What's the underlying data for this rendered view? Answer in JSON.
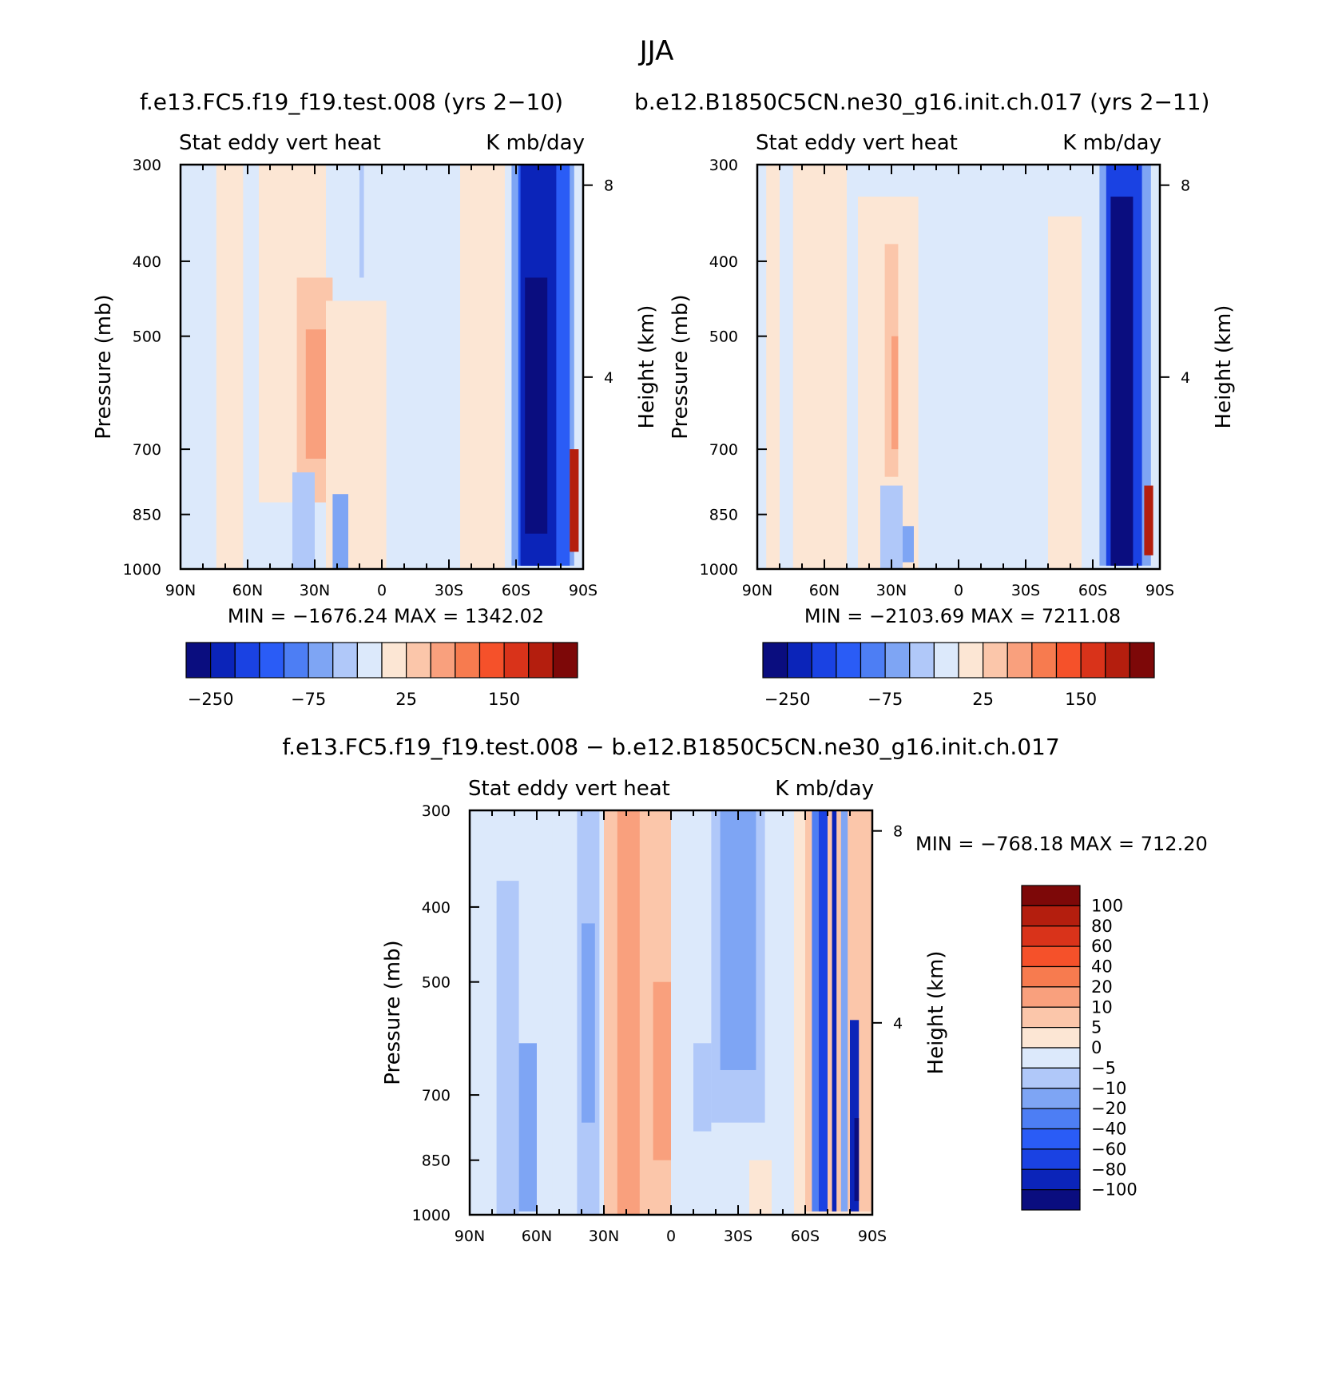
{
  "page": {
    "title": "JJA",
    "panel_top_left_title": "f.e13.FC5.f19_f19.test.008 (yrs 2−10)",
    "panel_top_right_title": "b.e12.B1850C5CN.ne30_g16.init.ch.017 (yrs 2−11)",
    "panel_bottom_title": "f.e13.FC5.f19_f19.test.008 − b.e12.B1850C5CN.ne30_g16.init.ch.017"
  },
  "chart_data": [
    {
      "type": "heatmap",
      "id": "top-left",
      "left_label": "Stat eddy vert heat",
      "right_label": "K mb/day",
      "xlabel": "",
      "ylabel": "Pressure (mb)",
      "ylabel_right": "Height (km)",
      "x_ticks": [
        "90N",
        "60N",
        "30N",
        "0",
        "30S",
        "60S",
        "90S"
      ],
      "y_ticks": [
        300,
        400,
        500,
        700,
        850,
        1000
      ],
      "y_ticks_right": [
        8,
        4
      ],
      "stats": "MIN = −1676.24   MAX = 1342.02",
      "colorbar_orientation": "horizontal",
      "colorbar_tick_labels": [
        "−250",
        "−75",
        "25",
        "150"
      ],
      "colorbar_colors": [
        "#0a0d7f",
        "#0b24b9",
        "#1a42e3",
        "#2a5cf6",
        "#4d7ef4",
        "#7ea5f4",
        "#b0c8f9",
        "#dce9fb",
        "#fce6d4",
        "#fbc6aa",
        "#f9a07d",
        "#f77b4f",
        "#f5512a",
        "#d9331a",
        "#b41e0e",
        "#7d0808"
      ],
      "regions": [
        {
          "lat1": 74,
          "lat2": 62,
          "p1": 300,
          "p2": 1000,
          "level": 8
        },
        {
          "lat1": 55,
          "lat2": 25,
          "p1": 300,
          "p2": 820,
          "level": 8
        },
        {
          "lat1": 38,
          "lat2": 22,
          "p1": 420,
          "p2": 820,
          "level": 9
        },
        {
          "lat1": 34,
          "lat2": 25,
          "p1": 490,
          "p2": 720,
          "level": 10
        },
        {
          "lat1": 25,
          "lat2": -2,
          "p1": 450,
          "p2": 1000,
          "level": 8
        },
        {
          "lat1": -35,
          "lat2": -55,
          "p1": 300,
          "p2": 1000,
          "level": 8
        },
        {
          "lat1": 40,
          "lat2": 30,
          "p1": 750,
          "p2": 1000,
          "level": 6
        },
        {
          "lat1": 22,
          "lat2": 15,
          "p1": 800,
          "p2": 1000,
          "level": 5
        },
        {
          "lat1": 10,
          "lat2": 8,
          "p1": 300,
          "p2": 420,
          "level": 6
        },
        {
          "lat1": -58,
          "lat2": -86,
          "p1": 300,
          "p2": 990,
          "level": 5
        },
        {
          "lat1": -61,
          "lat2": -84,
          "p1": 300,
          "p2": 990,
          "level": 3
        },
        {
          "lat1": -62,
          "lat2": -78,
          "p1": 300,
          "p2": 990,
          "level": 1
        },
        {
          "lat1": -64,
          "lat2": -74,
          "p1": 420,
          "p2": 900,
          "level": 0
        },
        {
          "lat1": -84,
          "lat2": -88,
          "p1": 700,
          "p2": 950,
          "level": 14
        }
      ]
    },
    {
      "type": "heatmap",
      "id": "top-right",
      "left_label": "Stat eddy vert heat",
      "right_label": "K mb/day",
      "xlabel": "",
      "ylabel": "Pressure (mb)",
      "ylabel_right": "Height (km)",
      "x_ticks": [
        "90N",
        "60N",
        "30N",
        "0",
        "30S",
        "60S",
        "90S"
      ],
      "y_ticks": [
        300,
        400,
        500,
        700,
        850,
        1000
      ],
      "y_ticks_right": [
        8,
        4
      ],
      "stats": "MIN = −2103.69   MAX = 7211.08",
      "colorbar_orientation": "horizontal",
      "colorbar_tick_labels": [
        "−250",
        "−75",
        "25",
        "150"
      ],
      "colorbar_colors": [
        "#0a0d7f",
        "#0b24b9",
        "#1a42e3",
        "#2a5cf6",
        "#4d7ef4",
        "#7ea5f4",
        "#b0c8f9",
        "#dce9fb",
        "#fce6d4",
        "#fbc6aa",
        "#f9a07d",
        "#f77b4f",
        "#f5512a",
        "#d9331a",
        "#b41e0e",
        "#7d0808"
      ],
      "regions": [
        {
          "lat1": 86,
          "lat2": 80,
          "p1": 300,
          "p2": 1000,
          "level": 8
        },
        {
          "lat1": 74,
          "lat2": 50,
          "p1": 300,
          "p2": 1000,
          "level": 8
        },
        {
          "lat1": 45,
          "lat2": 18,
          "p1": 330,
          "p2": 1000,
          "level": 8
        },
        {
          "lat1": 33,
          "lat2": 27,
          "p1": 380,
          "p2": 760,
          "level": 9
        },
        {
          "lat1": 30,
          "lat2": 27,
          "p1": 500,
          "p2": 700,
          "level": 10
        },
        {
          "lat1": -40,
          "lat2": -55,
          "p1": 350,
          "p2": 1000,
          "level": 8
        },
        {
          "lat1": 35,
          "lat2": 25,
          "p1": 780,
          "p2": 1000,
          "level": 6
        },
        {
          "lat1": 25,
          "lat2": 20,
          "p1": 880,
          "p2": 980,
          "level": 5
        },
        {
          "lat1": -63,
          "lat2": -86,
          "p1": 300,
          "p2": 990,
          "level": 5
        },
        {
          "lat1": -66,
          "lat2": -82,
          "p1": 300,
          "p2": 990,
          "level": 2
        },
        {
          "lat1": -68,
          "lat2": -78,
          "p1": 330,
          "p2": 990,
          "level": 0
        },
        {
          "lat1": -83,
          "lat2": -87,
          "p1": 780,
          "p2": 960,
          "level": 14
        }
      ]
    },
    {
      "type": "heatmap",
      "id": "bottom-diff",
      "left_label": "Stat eddy vert heat",
      "right_label": "K mb/day",
      "xlabel": "",
      "ylabel": "Pressure (mb)",
      "ylabel_right": "Height (km)",
      "x_ticks": [
        "90N",
        "60N",
        "30N",
        "0",
        "30S",
        "60S",
        "90S"
      ],
      "y_ticks": [
        300,
        400,
        500,
        700,
        850,
        1000
      ],
      "y_ticks_right": [
        8,
        4
      ],
      "stats": "MIN = −768.18   MAX = 712.20",
      "colorbar_orientation": "vertical",
      "colorbar_tick_labels": [
        "100",
        "80",
        "60",
        "40",
        "20",
        "10",
        "5",
        "0",
        "−5",
        "−10",
        "−20",
        "−40",
        "−60",
        "−80",
        "−100"
      ],
      "colorbar_colors": [
        "#7d0808",
        "#b41e0e",
        "#d9331a",
        "#f5512a",
        "#f77b4f",
        "#f9a07d",
        "#fbc6aa",
        "#fce6d4",
        "#dce9fb",
        "#b0c8f9",
        "#7ea5f4",
        "#4d7ef4",
        "#2a5cf6",
        "#1a42e3",
        "#0b24b9",
        "#0a0d7f"
      ],
      "regions": [
        {
          "lat1": 90,
          "lat2": 53,
          "p1": 300,
          "p2": 1000,
          "level": 8
        },
        {
          "lat1": 78,
          "lat2": 68,
          "p1": 370,
          "p2": 1000,
          "level": 9
        },
        {
          "lat1": 68,
          "lat2": 60,
          "p1": 600,
          "p2": 990,
          "level": 10
        },
        {
          "lat1": 42,
          "lat2": 32,
          "p1": 300,
          "p2": 1000,
          "level": 9
        },
        {
          "lat1": 40,
          "lat2": 34,
          "p1": 420,
          "p2": 760,
          "level": 10
        },
        {
          "lat1": 22,
          "lat2": 12,
          "p1": 700,
          "p2": 990,
          "level": 10
        },
        {
          "lat1": 30,
          "lat2": 0,
          "p1": 300,
          "p2": 1000,
          "level": 6
        },
        {
          "lat1": 24,
          "lat2": 14,
          "p1": 300,
          "p2": 1000,
          "level": 5
        },
        {
          "lat1": 8,
          "lat2": 0,
          "p1": 500,
          "p2": 850,
          "level": 5
        },
        {
          "lat1": 0,
          "lat2": -55,
          "p1": 300,
          "p2": 1000,
          "level": 8
        },
        {
          "lat1": -10,
          "lat2": -18,
          "p1": 600,
          "p2": 780,
          "level": 9
        },
        {
          "lat1": -18,
          "lat2": -42,
          "p1": 300,
          "p2": 760,
          "level": 9
        },
        {
          "lat1": -22,
          "lat2": -38,
          "p1": 300,
          "p2": 650,
          "level": 10
        },
        {
          "lat1": -35,
          "lat2": -45,
          "p1": 850,
          "p2": 1000,
          "level": 7
        },
        {
          "lat1": -55,
          "lat2": -90,
          "p1": 300,
          "p2": 1000,
          "level": 7
        },
        {
          "lat1": -60,
          "lat2": -90,
          "p1": 300,
          "p2": 990,
          "level": 6
        },
        {
          "lat1": -63,
          "lat2": -66,
          "p1": 300,
          "p2": 990,
          "level": 11
        },
        {
          "lat1": -66,
          "lat2": -70,
          "p1": 300,
          "p2": 990,
          "level": 13
        },
        {
          "lat1": -72,
          "lat2": -74,
          "p1": 300,
          "p2": 990,
          "level": 14
        },
        {
          "lat1": -76,
          "lat2": -79,
          "p1": 300,
          "p2": 990,
          "level": 10
        },
        {
          "lat1": -80,
          "lat2": -84,
          "p1": 560,
          "p2": 990,
          "level": 14
        },
        {
          "lat1": -82,
          "lat2": -84,
          "p1": 750,
          "p2": 960,
          "level": 15
        }
      ]
    }
  ]
}
